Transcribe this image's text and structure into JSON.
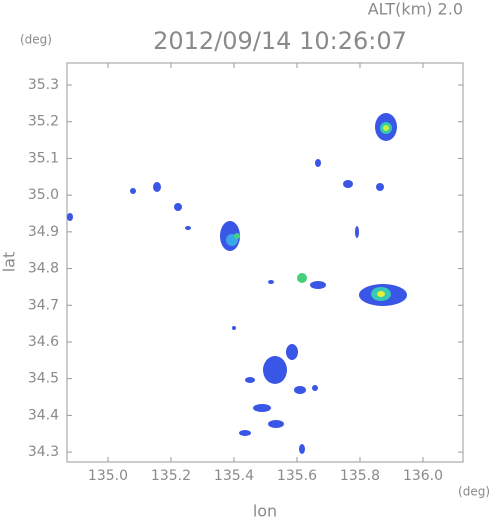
{
  "chart_data": {
    "type": "map",
    "title": "2012/09/14 10:26:07",
    "annotation": "ALT(km) 2.0",
    "x_label": "lon",
    "y_label": "lat",
    "x_unit": "(deg)",
    "y_unit": "(deg)",
    "xlim": [
      134.87,
      136.127
    ],
    "ylim": [
      34.273,
      35.36
    ],
    "xticks": [
      {
        "value": 135,
        "label": "135.0"
      },
      135.2,
      135.4,
      135.6,
      135.8,
      {
        "value": 136,
        "label": "136.0"
      }
    ],
    "yticks": [
      34.3,
      34.4,
      34.5,
      34.6,
      34.7,
      34.8,
      34.9,
      {
        "value": 35,
        "label": "35.0"
      },
      35.1,
      35.2,
      35.3
    ]
  }
}
